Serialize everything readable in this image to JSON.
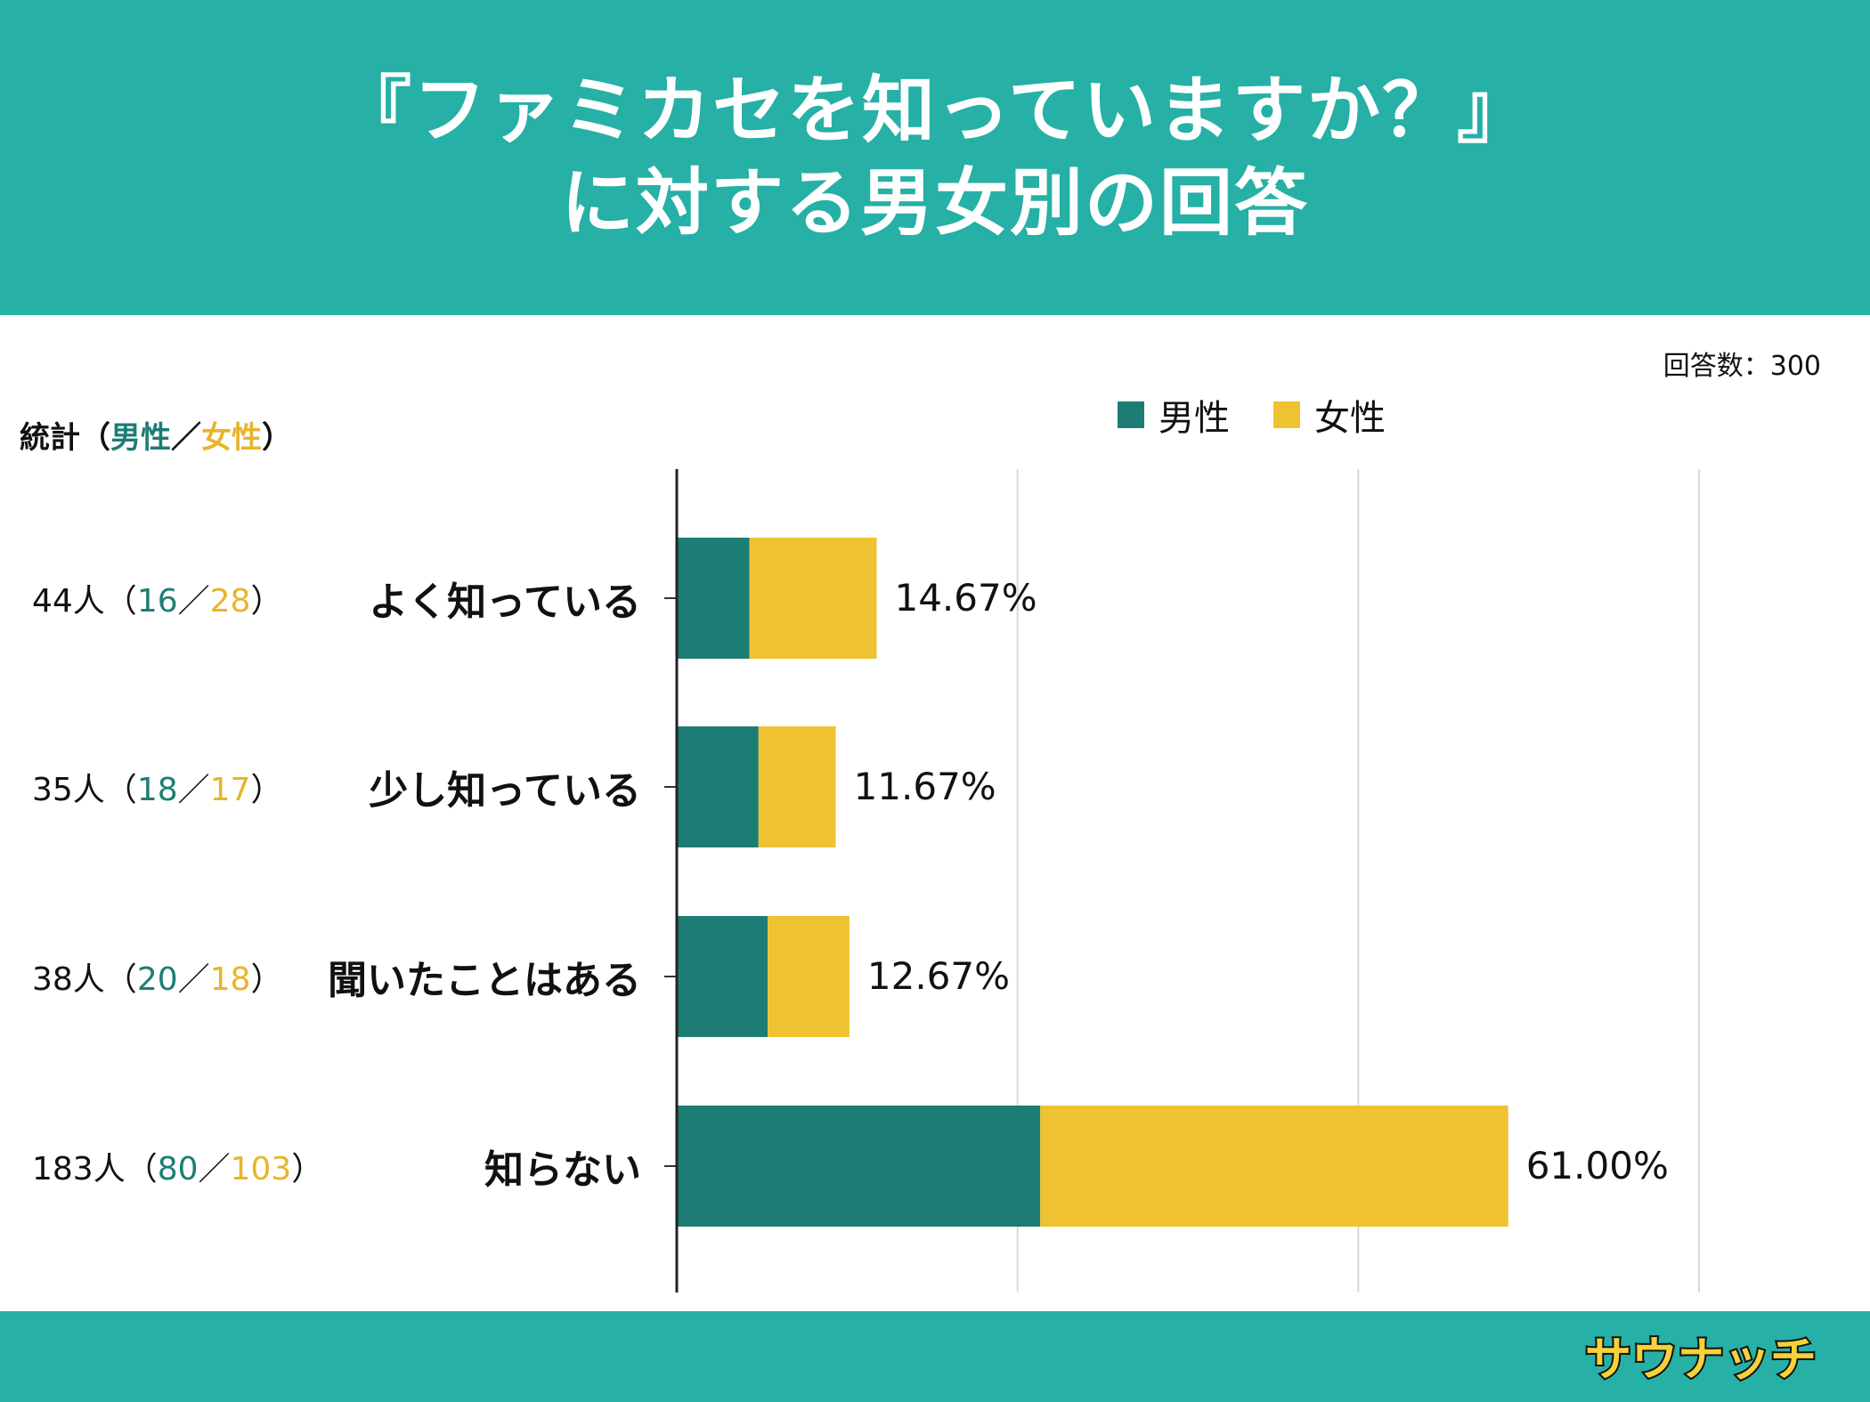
{
  "title": {
    "line1": "『ファミカセを知っていますか？』",
    "line2": "に対する男女別の回答"
  },
  "respondents": "回答数：300",
  "stats_heading": {
    "prefix": "統計（",
    "male": "男性",
    "separator": "／",
    "female": "女性",
    "suffix": "）"
  },
  "legend": {
    "male": "男性",
    "female": "女性"
  },
  "stats": [
    {
      "total": "44人（",
      "male": "16",
      "sep": "／",
      "female": "28",
      "close": "）"
    },
    {
      "total": "35人（",
      "male": "18",
      "sep": "／",
      "female": "17",
      "close": "）"
    },
    {
      "total": "38人（",
      "male": "20",
      "sep": "／",
      "female": "18",
      "close": "）"
    },
    {
      "total": "183人（",
      "male": "80",
      "sep": "／",
      "female": "103",
      "close": "）"
    }
  ],
  "brand": "サウナッチ",
  "colors": {
    "header": "#26b0a6",
    "male": "#1d7d74",
    "female": "#efc232",
    "grid": "#d9d9d9"
  },
  "chart_data": {
    "type": "bar",
    "orientation": "horizontal",
    "stacked": true,
    "categories": [
      "よく知っている",
      "少し知っている",
      "聞いたことはある",
      "知らない"
    ],
    "series": [
      {
        "name": "男性",
        "values": [
          16,
          18,
          20,
          80
        ]
      },
      {
        "name": "女性",
        "values": [
          28,
          17,
          18,
          103
        ]
      }
    ],
    "totals": [
      44,
      35,
      38,
      183
    ],
    "percent_labels": [
      "14.67%",
      "11.67%",
      "12.67%",
      "61.00%"
    ],
    "xlim": [
      0,
      225
    ],
    "grid": true,
    "legend_position": "top"
  }
}
